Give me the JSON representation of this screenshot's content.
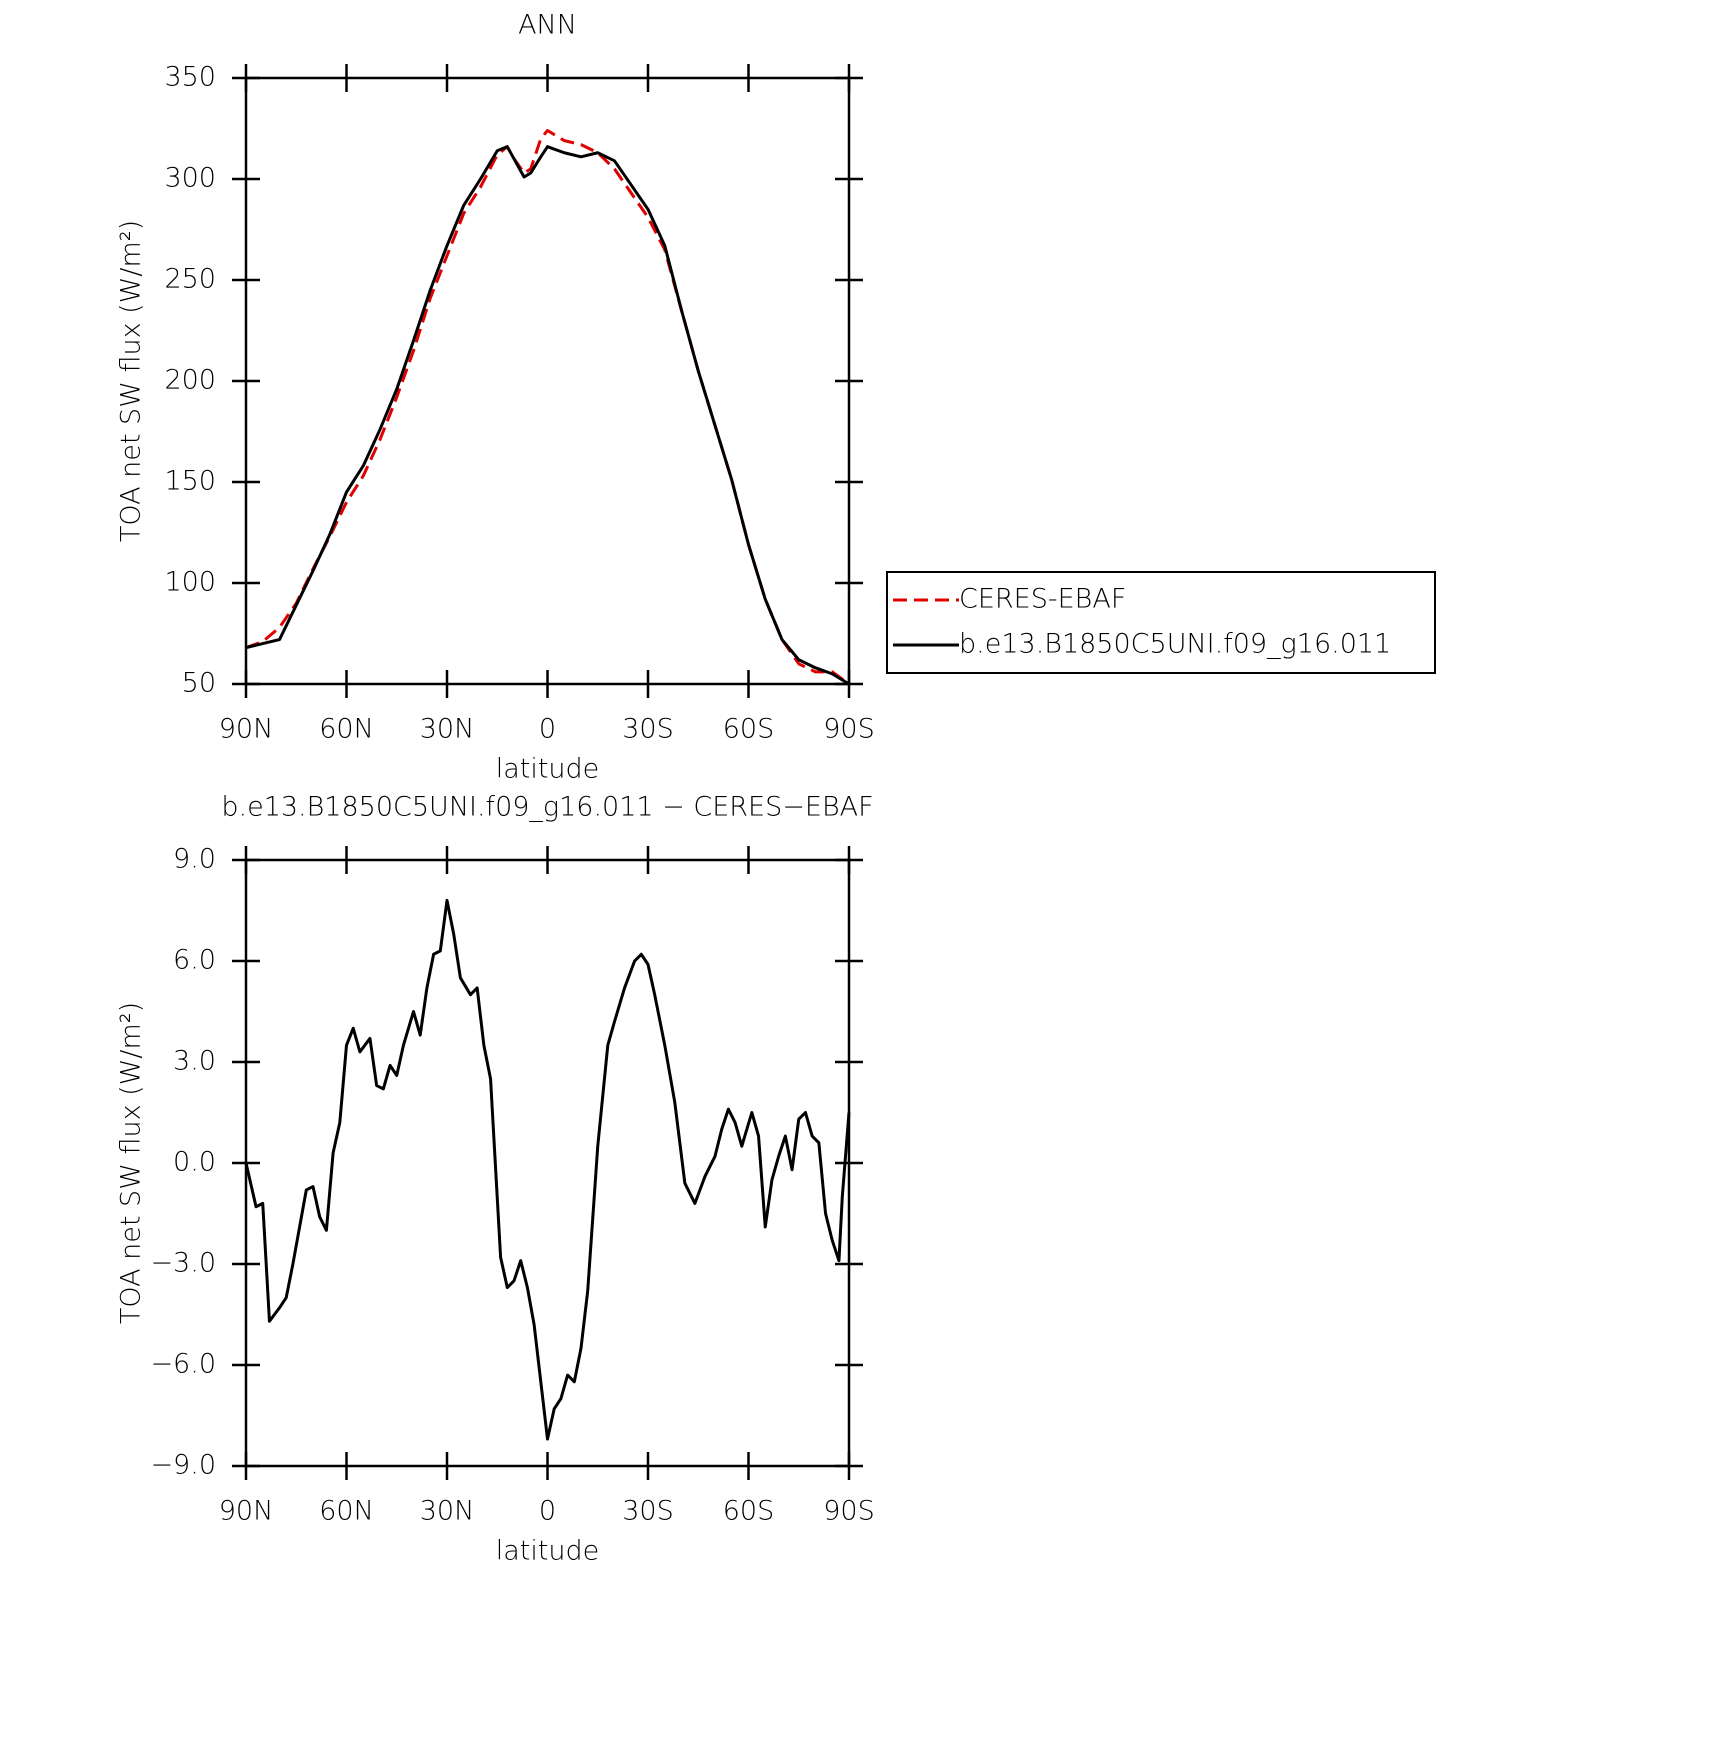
{
  "chart_data": [
    {
      "type": "line",
      "title": "ANN",
      "xlabel": "latitude",
      "ylabel": "TOA net SW flux (W/m²)",
      "x": [
        90,
        85,
        80,
        75,
        70,
        65,
        60,
        55,
        50,
        45,
        40,
        35,
        30,
        25,
        20,
        15,
        12,
        10,
        7,
        5,
        2,
        0,
        -5,
        -10,
        -15,
        -20,
        -25,
        -30,
        -35,
        -40,
        -45,
        -50,
        -55,
        -60,
        -65,
        -70,
        -75,
        -80,
        -85,
        -90
      ],
      "series": [
        {
          "name": "CERES-EBAF",
          "color": "#e00000",
          "dash": true,
          "values": [
            68,
            71,
            78,
            90,
            107,
            123,
            140,
            153,
            171,
            192,
            215,
            241,
            262,
            283,
            296,
            312,
            316,
            310,
            303,
            305,
            320,
            324,
            319,
            317,
            313,
            305,
            293,
            281,
            265,
            235,
            205,
            178,
            151,
            119,
            92,
            72,
            60,
            56,
            56,
            50
          ]
        },
        {
          "name": "b.e13.B1850C5UNI.f09_g16.011",
          "color": "#000000",
          "dash": false,
          "values": [
            68,
            70,
            72,
            89,
            106,
            124,
            145,
            158,
            176,
            196,
            220,
            245,
            267,
            287,
            300,
            314,
            316,
            310,
            301,
            303,
            311,
            316,
            313,
            311,
            313,
            309,
            297,
            285,
            267,
            235,
            205,
            178,
            151,
            119,
            92,
            72,
            62,
            58,
            55,
            50
          ]
        }
      ],
      "xlim": [
        90,
        -90
      ],
      "xticks": [
        {
          "value": 90,
          "label": "90N"
        },
        {
          "value": 60,
          "label": "60N"
        },
        {
          "value": 30,
          "label": "30N"
        },
        0,
        {
          "value": -30,
          "label": "30S"
        },
        {
          "value": -60,
          "label": "60S"
        },
        {
          "value": -90,
          "label": "90S"
        }
      ],
      "ylim": [
        50,
        350
      ],
      "yticks": [
        50,
        100,
        150,
        200,
        250,
        300,
        350
      ],
      "legend": "outside-right"
    },
    {
      "type": "line",
      "title": "b.e13.B1850C5UNI.f09_g16.011 − CERES−EBAF",
      "xlabel": "latitude",
      "ylabel": "TOA net SW flux (W/m²)",
      "x": [
        90,
        87,
        85,
        83,
        80,
        78,
        76,
        72,
        70,
        68,
        66,
        64,
        62,
        60,
        58,
        56,
        53,
        51,
        49,
        47,
        45,
        43,
        40,
        38,
        36,
        34,
        32,
        30,
        28,
        26,
        23,
        21,
        19,
        17,
        14,
        12,
        10,
        8,
        6,
        4,
        2,
        0,
        -2,
        -4,
        -6,
        -8,
        -10,
        -12,
        -15,
        -18,
        -20,
        -23,
        -26,
        -28,
        -30,
        -32,
        -35,
        -38,
        -41,
        -44,
        -47,
        -50,
        -52,
        -54,
        -56,
        -58,
        -61,
        -63,
        -65,
        -67,
        -69,
        -71,
        -73,
        -75,
        -77,
        -79,
        -81,
        -83,
        -85,
        -87,
        -88,
        -90
      ],
      "values": [
        0,
        -1.3,
        -1.2,
        -4.7,
        -4.3,
        -4.0,
        -3.0,
        -0.8,
        -0.7,
        -1.6,
        -2.0,
        0.3,
        1.2,
        3.5,
        4.0,
        3.3,
        3.7,
        2.3,
        2.2,
        2.9,
        2.6,
        3.5,
        4.5,
        3.8,
        5.2,
        6.2,
        6.3,
        7.8,
        6.8,
        5.5,
        5.0,
        5.2,
        3.5,
        2.5,
        -2.8,
        -3.7,
        -3.5,
        -2.9,
        -3.7,
        -4.8,
        -6.5,
        -8.2,
        -7.3,
        -7.0,
        -6.3,
        -6.5,
        -5.5,
        -3.8,
        0.5,
        3.5,
        4.2,
        5.2,
        6.0,
        6.2,
        5.9,
        5.0,
        3.5,
        1.8,
        -0.6,
        -1.2,
        -0.4,
        0.2,
        1.0,
        1.6,
        1.2,
        0.5,
        1.5,
        0.8,
        -1.9,
        -0.5,
        0.2,
        0.8,
        -0.2,
        1.3,
        1.5,
        0.8,
        0.6,
        -1.5,
        -2.3,
        -2.9,
        -1.0,
        1.5
      ],
      "color": "#000000",
      "xlim": [
        90,
        -90
      ],
      "xticks": [
        {
          "value": 90,
          "label": "90N"
        },
        {
          "value": 60,
          "label": "60N"
        },
        {
          "value": 30,
          "label": "30N"
        },
        0,
        {
          "value": -30,
          "label": "30S"
        },
        {
          "value": -60,
          "label": "60S"
        },
        {
          "value": -90,
          "label": "90S"
        }
      ],
      "ylim": [
        -9,
        9
      ],
      "yticks": [
        {
          "value": -9,
          "label": "−9.0"
        },
        {
          "value": -6,
          "label": "−6.0"
        },
        {
          "value": -3,
          "label": "−3.0"
        },
        {
          "value": 0,
          "label": "0.0"
        },
        {
          "value": 3,
          "label": "3.0"
        },
        {
          "value": 6,
          "label": "6.0"
        },
        {
          "value": 9,
          "label": "9.0"
        }
      ]
    }
  ]
}
